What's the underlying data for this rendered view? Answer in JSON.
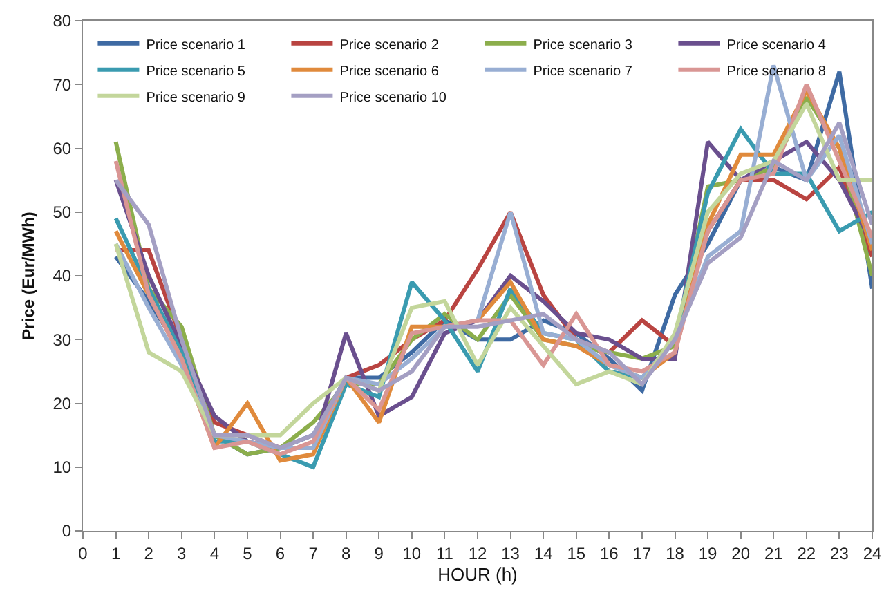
{
  "chart_data": {
    "type": "line",
    "xlabel": "HOUR (h)",
    "ylabel": "Price (Eur/MWh)",
    "x": [
      1,
      2,
      3,
      4,
      5,
      6,
      7,
      8,
      9,
      10,
      11,
      12,
      13,
      14,
      15,
      16,
      17,
      18,
      19,
      20,
      21,
      22,
      23,
      24
    ],
    "xlim": [
      0,
      24
    ],
    "xticks": [
      0,
      1,
      2,
      3,
      4,
      5,
      6,
      7,
      8,
      9,
      10,
      11,
      12,
      13,
      14,
      15,
      16,
      17,
      18,
      19,
      20,
      21,
      22,
      23,
      24
    ],
    "ylim": [
      0,
      80
    ],
    "yticks": [
      0,
      10,
      20,
      30,
      40,
      50,
      60,
      70,
      80
    ],
    "legend": "top left",
    "marker": "none",
    "line_style": "solid",
    "series": [
      {
        "name": "Price scenario 1",
        "color": "#3e6aa3",
        "values": [
          43,
          36,
          28,
          15,
          12,
          13,
          15,
          24,
          24,
          28,
          33,
          30,
          30,
          33,
          31,
          27,
          22,
          37,
          45,
          55,
          57,
          55,
          72,
          38
        ]
      },
      {
        "name": "Price scenario 2",
        "color": "#b94441",
        "values": [
          44,
          44,
          30,
          17,
          15,
          13,
          13,
          24,
          26,
          30,
          33,
          41,
          50,
          37,
          30,
          28,
          33,
          29,
          47,
          55,
          55,
          52,
          57,
          43
        ]
      },
      {
        "name": "Price scenario 3",
        "color": "#8cae4c",
        "values": [
          61,
          38,
          32,
          15,
          12,
          13,
          17,
          23,
          23,
          30,
          34,
          30,
          37,
          30,
          29,
          28,
          27,
          29,
          54,
          55,
          57,
          68,
          60,
          40
        ]
      },
      {
        "name": "Price scenario 4",
        "color": "#6a4f8e",
        "values": [
          55,
          40,
          29,
          18,
          14,
          13,
          13,
          31,
          18,
          21,
          31,
          33,
          40,
          36,
          31,
          30,
          27,
          27,
          61,
          55,
          58,
          61,
          55,
          45
        ]
      },
      {
        "name": "Price scenario 5",
        "color": "#3a9bb0",
        "values": [
          49,
          38,
          28,
          14,
          14,
          12,
          10,
          23,
          21,
          39,
          33,
          25,
          38,
          31,
          30,
          25,
          24,
          30,
          53,
          63,
          56,
          56,
          47,
          50
        ]
      },
      {
        "name": "Price scenario 6",
        "color": "#e08a3c",
        "values": [
          47,
          37,
          27,
          13,
          20,
          11,
          12,
          24,
          17,
          32,
          32,
          33,
          39,
          30,
          29,
          26,
          24,
          28,
          48,
          59,
          59,
          69,
          60,
          44
        ]
      },
      {
        "name": "Price scenario 7",
        "color": "#98aed3",
        "values": [
          45,
          35,
          26,
          15,
          14,
          13,
          13,
          24,
          23,
          27,
          32,
          33,
          50,
          31,
          30,
          26,
          24,
          30,
          43,
          47,
          73,
          55,
          62,
          45
        ]
      },
      {
        "name": "Price scenario 8",
        "color": "#d99694",
        "values": [
          58,
          37,
          27,
          13,
          14,
          12,
          14,
          24,
          19,
          31,
          32,
          33,
          33,
          26,
          34,
          26,
          25,
          28,
          47,
          55,
          56,
          70,
          58,
          46
        ]
      },
      {
        "name": "Price scenario 9",
        "color": "#c3d69b",
        "values": [
          45,
          28,
          25,
          15,
          15,
          15,
          20,
          24,
          22,
          35,
          36,
          26,
          35,
          29,
          23,
          25,
          23,
          31,
          50,
          56,
          58,
          67,
          55,
          55
        ]
      },
      {
        "name": "Price scenario 10",
        "color": "#a49fc3",
        "values": [
          55,
          48,
          30,
          15,
          15,
          13,
          15,
          24,
          22,
          25,
          32,
          32,
          33,
          34,
          30,
          28,
          23,
          30,
          42,
          46,
          58,
          55,
          64,
          48
        ]
      }
    ]
  }
}
